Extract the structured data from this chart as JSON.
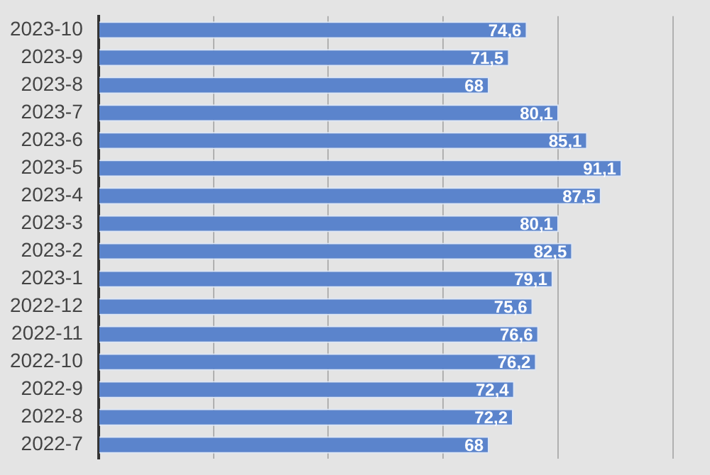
{
  "chart_data": {
    "type": "bar",
    "orientation": "horizontal",
    "categories": [
      "2023-10",
      "2023-9",
      "2023-8",
      "2023-7",
      "2023-6",
      "2023-5",
      "2023-4",
      "2023-3",
      "2023-2",
      "2023-1",
      "2022-12",
      "2022-11",
      "2022-10",
      "2022-9",
      "2022-8",
      "2022-7"
    ],
    "values": [
      74.6,
      71.5,
      68,
      80.1,
      85.1,
      91.1,
      87.5,
      80.1,
      82.5,
      79.1,
      75.6,
      76.6,
      76.2,
      72.4,
      72.2,
      68
    ],
    "value_labels": [
      "74,6",
      "71,5",
      "68",
      "80,1",
      "85,1",
      "91,1",
      "87,5",
      "80,1",
      "82,5",
      "79,1",
      "75,6",
      "76,6",
      "76,2",
      "72,4",
      "72,2",
      "68"
    ],
    "color": "#5b84cc",
    "xlim": [
      0,
      100
    ],
    "xticks": [
      0,
      20,
      40,
      60,
      80,
      100
    ],
    "grid": "x",
    "tick_labels": "y"
  }
}
